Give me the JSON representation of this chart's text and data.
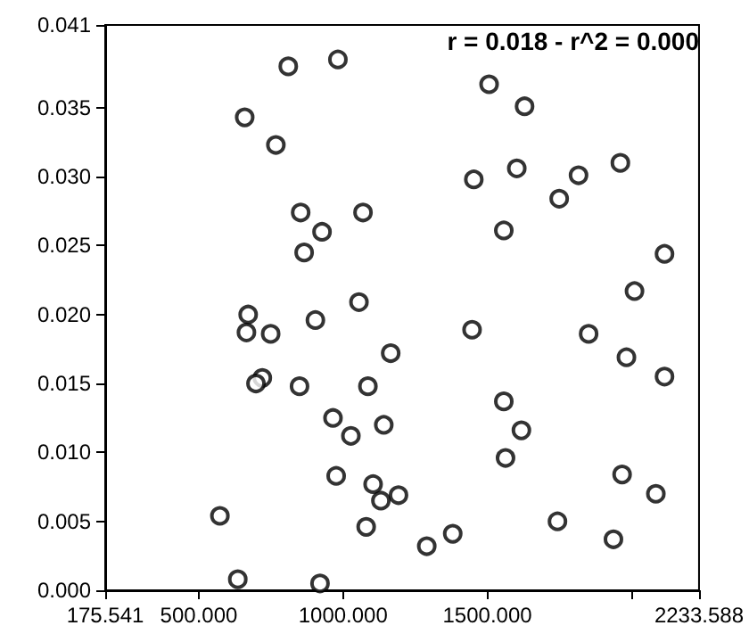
{
  "chart_data": {
    "type": "scatter",
    "marker": "circle",
    "grid": false,
    "annotations": [
      "r = 0.018 - r^2 = 0.000"
    ],
    "x": [
      810,
      982,
      1506,
      1629,
      659,
      767,
      1961,
      1602,
      1816,
      1453,
      1749,
      853,
      1069,
      927,
      1557,
      865,
      2114,
      2010,
      1055,
      671,
      904,
      665,
      749,
      1447,
      1851,
      1165,
      1982,
      2114,
      720,
      698,
      849,
      1086,
      1557,
      965,
      1027,
      1141,
      1618,
      1563,
      976,
      1967,
      1104,
      1131,
      1192,
      2084,
      573,
      1743,
      1080,
      1380,
      1290,
      1937,
      635,
      920
    ],
    "series": [
      {
        "color": "#000000",
        "values": [
          0.038,
          0.0385,
          0.0367,
          0.0351,
          0.0343,
          0.0323,
          0.031,
          0.0306,
          0.0301,
          0.0298,
          0.0284,
          0.0274,
          0.0274,
          0.026,
          0.0261,
          0.0245,
          0.0244,
          0.0217,
          0.0209,
          0.02,
          0.0196,
          0.0187,
          0.0186,
          0.0189,
          0.0186,
          0.0172,
          0.0169,
          0.0155,
          0.0154,
          0.015,
          0.0148,
          0.0148,
          0.0137,
          0.0125,
          0.0112,
          0.012,
          0.0116,
          0.0096,
          0.0083,
          0.0084,
          0.0077,
          0.0065,
          0.0069,
          0.007,
          0.0054,
          0.005,
          0.0046,
          0.0041,
          0.0032,
          0.0037,
          0.0008,
          0.0005
        ]
      }
    ],
    "xlim": [
      175.541,
      2233.588
    ],
    "xticks": [
      {
        "value": 175.541,
        "label": "175.541"
      },
      {
        "value": 500,
        "label": "500.000"
      },
      {
        "value": 1000,
        "label": "1000.000"
      },
      {
        "value": 1500,
        "label": "1500.000"
      },
      {
        "value": 2000,
        "label": null
      },
      {
        "value": 2233.588,
        "label": "2233.588"
      }
    ],
    "ylim": [
      0,
      0.041
    ],
    "yticks": [
      {
        "value": 0,
        "label": "0.000"
      },
      {
        "value": 0.005,
        "label": "0.005"
      },
      {
        "value": 0.01,
        "label": "0.010"
      },
      {
        "value": 0.015,
        "label": "0.015"
      },
      {
        "value": 0.02,
        "label": "0.020"
      },
      {
        "value": 0.025,
        "label": "0.025"
      },
      {
        "value": 0.03,
        "label": "0.030"
      },
      {
        "value": 0.035,
        "label": "0.035"
      },
      {
        "value": 0.041,
        "label": "0.041"
      }
    ]
  }
}
